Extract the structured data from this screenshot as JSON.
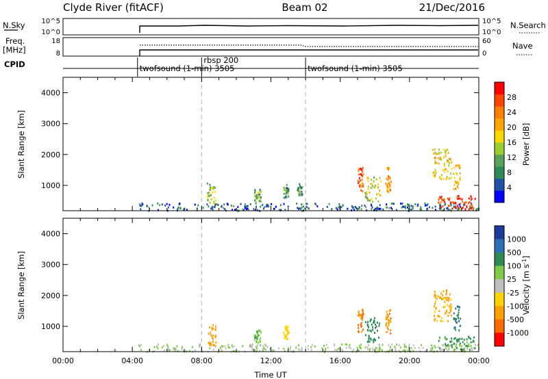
{
  "header": {
    "station": "Clyde River (fitACF)",
    "beam": "Beam 02",
    "date": "21/Dec/2016"
  },
  "top_panels": {
    "nsky": {
      "label": "N.Sky",
      "ticks_left": [
        "10^5",
        "10^0"
      ],
      "ticks_right": [
        "10^5",
        "10^0"
      ],
      "right_label": "N.Search"
    },
    "freq": {
      "label": "Freq.",
      "unit": "[MHz]",
      "ticks_left": [
        "18",
        "8"
      ],
      "ticks_right": [
        "60",
        "0"
      ],
      "right_label": "Nave"
    },
    "cpid": {
      "label": "CPID",
      "segments": [
        {
          "start": 4.3,
          "end": 14.0,
          "name": "twofsound (1-min) 3505"
        },
        {
          "start": 8.0,
          "end": 14.0,
          "name": "rbsp 200"
        },
        {
          "start": 14.0,
          "end": 24.0,
          "name": "twofsound (1-min) 3505"
        }
      ]
    }
  },
  "chart_data": [
    {
      "type": "heatmap",
      "title": "",
      "ylabel": "Slant Range [km]",
      "xlabel": "",
      "xlim": [
        0,
        24
      ],
      "ylim": [
        180,
        4500
      ],
      "yticks": [
        1000,
        2000,
        3000,
        4000
      ],
      "colorbar": {
        "label": "Power [dB]",
        "ticks": [
          4,
          8,
          12,
          16,
          20,
          24,
          28
        ],
        "range": [
          0,
          32
        ],
        "colors": [
          "#0000ff",
          "#2050a8",
          "#2e8b57",
          "#5aa05a",
          "#9acd32",
          "#ffd700",
          "#ffa500",
          "#ff7f00",
          "#ff4500",
          "#ff0000"
        ]
      },
      "markers": [
        8.0,
        14.0
      ],
      "data": [
        {
          "t0": 4.3,
          "t1": 24.0,
          "r0": 200,
          "r1": 450,
          "value": 6
        },
        {
          "t0": 8.3,
          "t1": 8.8,
          "r0": 400,
          "r1": 1100,
          "value": 14
        },
        {
          "t0": 11.0,
          "t1": 11.4,
          "r0": 500,
          "r1": 900,
          "value": 12
        },
        {
          "t0": 12.7,
          "t1": 13.0,
          "r0": 600,
          "r1": 1050,
          "value": 10
        },
        {
          "t0": 13.5,
          "t1": 13.8,
          "r0": 700,
          "r1": 1100,
          "value": 10
        },
        {
          "t0": 17.0,
          "t1": 17.3,
          "r0": 800,
          "r1": 1600,
          "value": 26
        },
        {
          "t0": 17.4,
          "t1": 18.3,
          "r0": 500,
          "r1": 1300,
          "value": 16
        },
        {
          "t0": 18.6,
          "t1": 18.9,
          "r0": 800,
          "r1": 1600,
          "value": 22
        },
        {
          "t0": 21.3,
          "t1": 22.4,
          "r0": 1200,
          "r1": 2200,
          "value": 18
        },
        {
          "t0": 22.5,
          "t1": 22.9,
          "r0": 900,
          "r1": 1700,
          "value": 20
        },
        {
          "t0": 21.6,
          "t1": 23.8,
          "r0": 250,
          "r1": 700,
          "value": 28
        }
      ]
    },
    {
      "type": "heatmap",
      "title": "",
      "ylabel": "Slant Range [km]",
      "xlabel": "Time UT",
      "xlim": [
        0,
        24
      ],
      "ylim": [
        180,
        4500
      ],
      "yticks": [
        1000,
        2000,
        3000,
        4000
      ],
      "xticks": [
        "00:00",
        "04:00",
        "08:00",
        "12:00",
        "16:00",
        "20:00",
        "00:00"
      ],
      "colorbar": {
        "label": "Velocity [m s^-1]",
        "ticks": [
          "1000",
          "500",
          "100",
          "25",
          "-25",
          "-100",
          "-500",
          "-1000"
        ],
        "colors": [
          "#1c3d9c",
          "#2e6fb5",
          "#2e8b57",
          "#7ccd45",
          "#c0c0c0",
          "#ffd200",
          "#ffa000",
          "#ff6a00",
          "#ff0000"
        ]
      },
      "markers": [
        8.0,
        14.0
      ],
      "data": [
        {
          "t0": 4.3,
          "t1": 24.0,
          "r0": 200,
          "r1": 450,
          "value": 25
        },
        {
          "t0": 8.3,
          "t1": 8.8,
          "r0": 400,
          "r1": 1100,
          "value": -300
        },
        {
          "t0": 11.0,
          "t1": 11.4,
          "r0": 500,
          "r1": 900,
          "value": 80
        },
        {
          "t0": 12.7,
          "t1": 13.0,
          "r0": 600,
          "r1": 1050,
          "value": -60
        },
        {
          "t0": 17.0,
          "t1": 17.3,
          "r0": 800,
          "r1": 1600,
          "value": -600
        },
        {
          "t0": 17.4,
          "t1": 18.3,
          "r0": 500,
          "r1": 1300,
          "value": 300
        },
        {
          "t0": 18.6,
          "t1": 18.9,
          "r0": 800,
          "r1": 1600,
          "value": -400
        },
        {
          "t0": 21.3,
          "t1": 22.4,
          "r0": 1200,
          "r1": 2200,
          "value": -150
        },
        {
          "t0": 22.5,
          "t1": 22.9,
          "r0": 900,
          "r1": 1700,
          "value": 400
        },
        {
          "t0": 21.6,
          "t1": 23.8,
          "r0": 250,
          "r1": 700,
          "value": 120
        }
      ]
    }
  ]
}
